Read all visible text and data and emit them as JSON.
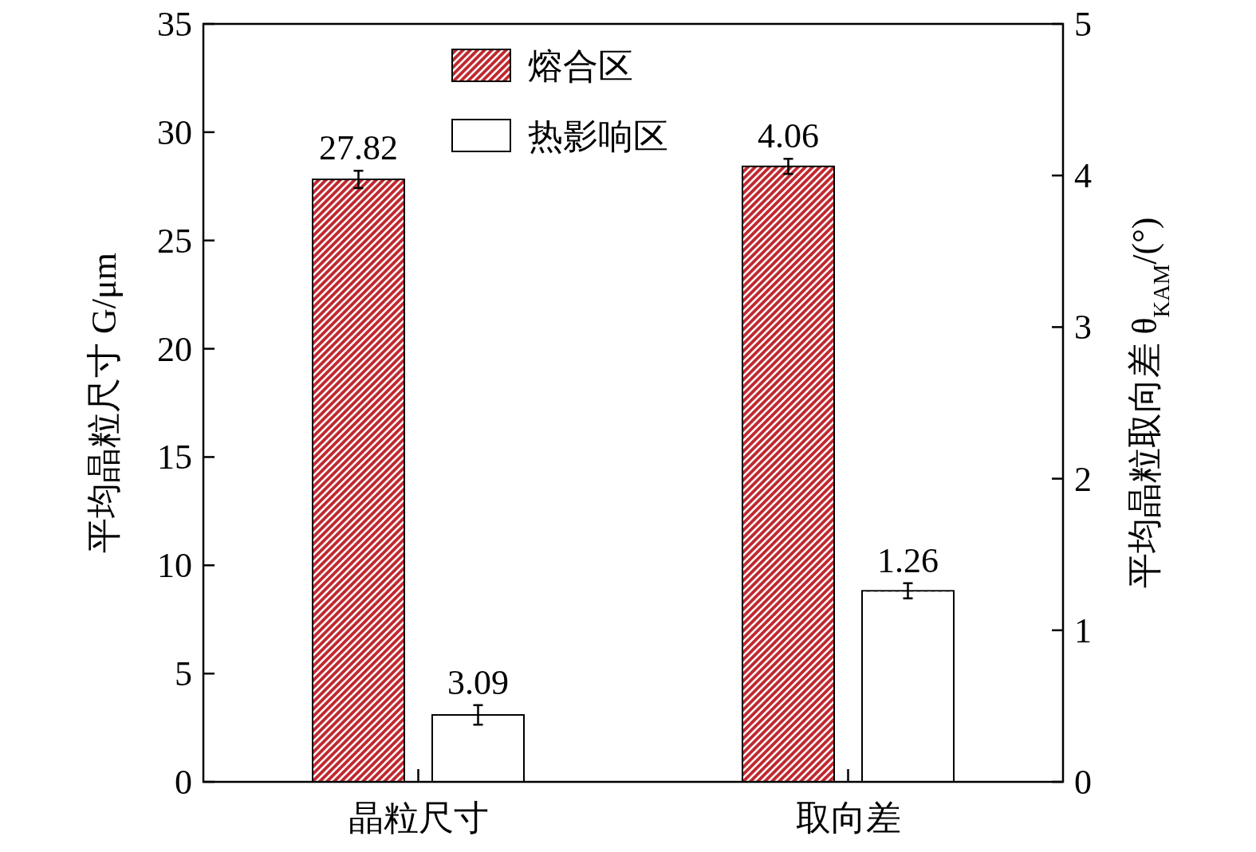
{
  "chart_data": {
    "type": "bar",
    "categories": [
      "晶粒尺寸",
      "取向差"
    ],
    "series": [
      {
        "name": "熔合区",
        "color": "#c0282f",
        "values": [
          27.82,
          null
        ],
        "errors": [
          0.4,
          null
        ]
      },
      {
        "name": "热影响区",
        "color": "#ffffff",
        "values": [
          3.09,
          null
        ],
        "errors": [
          0.45,
          null
        ]
      },
      {
        "color": "#c0282f",
        "values": [
          null,
          4.06
        ],
        "errors": [
          null,
          0.05
        ],
        "axis": "y2"
      },
      {
        "color": "#ffffff",
        "values": [
          null,
          1.26
        ],
        "errors": [
          null,
          0.05
        ],
        "axis": "y2"
      }
    ],
    "ylabel": "平均晶粒尺寸 G/μm",
    "y2label": "平均晶粒取向差 θ$_{KAM}$/(°)",
    "ylim": [
      0,
      35
    ],
    "yticks": [
      0,
      5,
      10,
      15,
      20,
      25,
      30,
      35
    ],
    "y2lim": [
      0,
      5
    ],
    "y2ticks": [
      0,
      1,
      2,
      3,
      4,
      5
    ],
    "data_labels": true,
    "legend": "top"
  }
}
